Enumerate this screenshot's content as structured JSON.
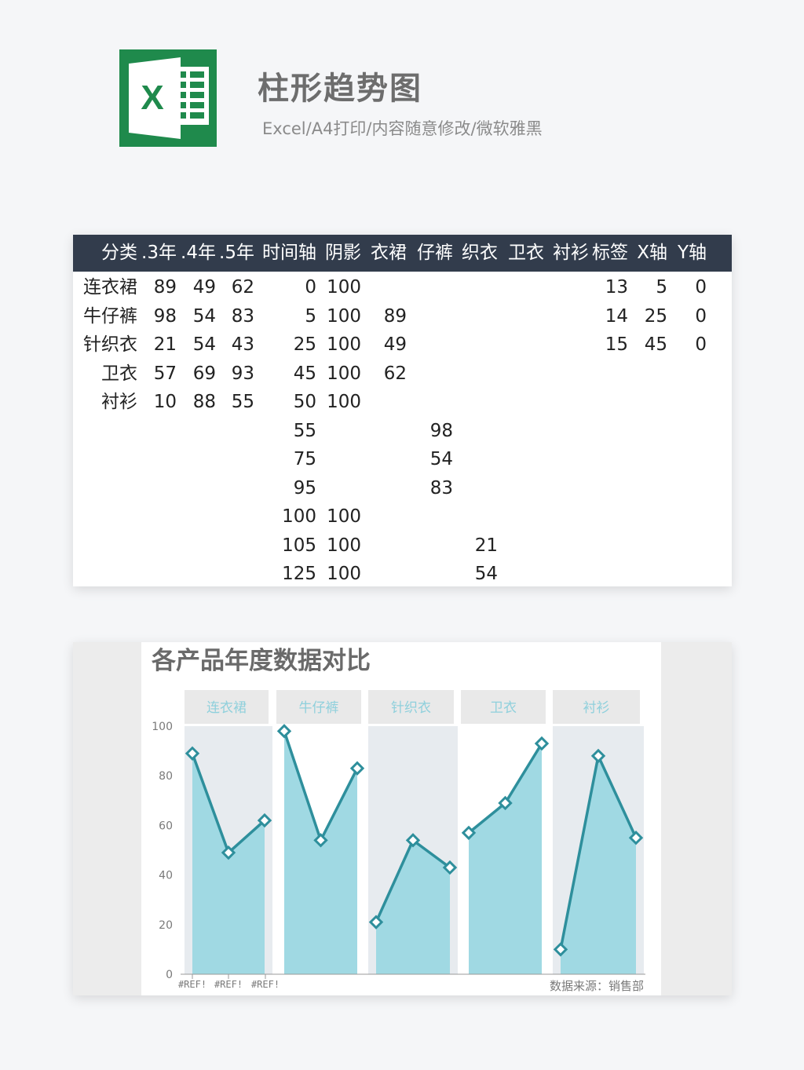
{
  "header": {
    "title": "柱形趋势图",
    "subtitle": "Excel/A4打印/内容随意修改/微软雅黑",
    "logo_letter": "X"
  },
  "table": {
    "columns": [
      "分类",
      ".3年",
      ".4年",
      ".5年",
      "时间轴",
      "阴影",
      "衣裙",
      "仔裤",
      "织衣",
      "卫衣",
      "衬衫",
      "标签",
      "X轴",
      "Y轴"
    ],
    "rows": [
      [
        "连衣裙",
        "89",
        "49",
        "62",
        "0",
        "100",
        "",
        "",
        "",
        "",
        "",
        "13",
        "5",
        "0"
      ],
      [
        "牛仔裤",
        "98",
        "54",
        "83",
        "5",
        "100",
        "89",
        "",
        "",
        "",
        "",
        "14",
        "25",
        "0"
      ],
      [
        "针织衣",
        "21",
        "54",
        "43",
        "25",
        "100",
        "49",
        "",
        "",
        "",
        "",
        "15",
        "45",
        "0"
      ],
      [
        "卫衣",
        "57",
        "69",
        "93",
        "45",
        "100",
        "62",
        "",
        "",
        "",
        "",
        "",
        "",
        ""
      ],
      [
        "衬衫",
        "10",
        "88",
        "55",
        "50",
        "100",
        "",
        "",
        "",
        "",
        "",
        "",
        "",
        ""
      ],
      [
        "",
        "",
        "",
        "",
        "55",
        "",
        "",
        "98",
        "",
        "",
        "",
        "",
        "",
        ""
      ],
      [
        "",
        "",
        "",
        "",
        "75",
        "",
        "",
        "54",
        "",
        "",
        "",
        "",
        "",
        ""
      ],
      [
        "",
        "",
        "",
        "",
        "95",
        "",
        "",
        "83",
        "",
        "",
        "",
        "",
        "",
        ""
      ],
      [
        "",
        "",
        "",
        "",
        "100",
        "100",
        "",
        "",
        "",
        "",
        "",
        "",
        "",
        ""
      ],
      [
        "",
        "",
        "",
        "",
        "105",
        "100",
        "",
        "",
        "21",
        "",
        "",
        "",
        "",
        ""
      ],
      [
        "",
        "",
        "",
        "",
        "125",
        "100",
        "",
        "",
        "54",
        "",
        "",
        "",
        "",
        ""
      ]
    ]
  },
  "chart_data": {
    "type": "area",
    "title": "各产品年度数据对比",
    "categories": [
      "连衣裙",
      "牛仔裤",
      "针织衣",
      "卫衣",
      "衬衫"
    ],
    "series": [
      {
        "values": [
          [
            89,
            49,
            62
          ],
          [
            98,
            54,
            83
          ],
          [
            21,
            54,
            43
          ],
          [
            57,
            69,
            93
          ],
          [
            10,
            88,
            55
          ]
        ]
      }
    ],
    "ylim": [
      0,
      100
    ],
    "yticks": [
      0,
      20,
      40,
      60,
      80,
      100
    ],
    "xtick_labels": [
      "#REF!",
      "#REF!",
      "#REF!"
    ],
    "source_note": "数据来源：销售部",
    "colors": {
      "line": "#2e8f9c",
      "area": "#a0d9e3",
      "shade": "#e7ebef",
      "label_box": "#e9e9e9",
      "label_text": "#8fd0dc"
    }
  }
}
